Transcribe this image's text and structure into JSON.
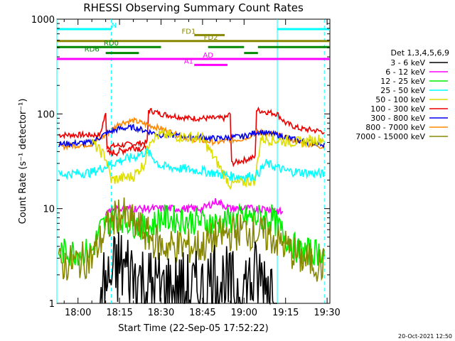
{
  "chart_data": {
    "type": "line",
    "title": "RHESSI Observing Summary Count Rates",
    "xlabel": "Start Time (22-Sep-05 17:52:22)",
    "ylabel": "Count Rate (s⁻¹ detector⁻¹)",
    "yscale": "log",
    "ylim": [
      1,
      1000
    ],
    "xlim": [
      "17:52:22",
      "19:31:00"
    ],
    "x_ticks": [
      "18:00",
      "18:15",
      "18:30",
      "18:45",
      "19:00",
      "19:15",
      "19:30"
    ],
    "y_ticks": [
      "1",
      "10",
      "100",
      "1000"
    ],
    "timestamp": "20-Oct-2021 12:50",
    "legend": {
      "title": "Det 1,3,4,5,6,9",
      "placement": "right",
      "entries": [
        {
          "label": "3 - 6 keV",
          "color": "#000000"
        },
        {
          "label": "6 - 12 keV",
          "color": "#ff00ff"
        },
        {
          "label": "12 - 25 keV",
          "color": "#00ee00"
        },
        {
          "label": "25 - 50 keV",
          "color": "#00ffff"
        },
        {
          "label": "50 - 100 keV",
          "color": "#dddd00"
        },
        {
          "label": "100 - 300 keV",
          "color": "#ee0000"
        },
        {
          "label": "300 - 800 keV",
          "color": "#0000ee"
        },
        {
          "label": "800 - 7000 keV",
          "color": "#ff8800"
        },
        {
          "label": "7000 - 15000 keV",
          "color": "#888800"
        }
      ]
    },
    "flags": [
      {
        "label": "N",
        "color": "#00ffff",
        "level": 0,
        "label_at": "18:13",
        "segments": [
          [
            "17:52:22",
            "18:12"
          ],
          [
            "19:12",
            "19:31"
          ]
        ]
      },
      {
        "label": "FD1",
        "color": "#888800",
        "level": 1,
        "label_at": "18:40",
        "segments": [
          [
            "18:42",
            "18:53"
          ]
        ]
      },
      {
        "label": "FD2",
        "color": "#888800",
        "level": 2,
        "label_at": "18:48",
        "segments": [
          [
            "17:52:22",
            "19:31"
          ]
        ]
      },
      {
        "label": "RD0",
        "color": "#008800",
        "level": 3,
        "label_at": "18:12",
        "segments": [
          [
            "17:52:22",
            "18:30"
          ],
          [
            "18:47",
            "19:00"
          ],
          [
            "19:05",
            "19:31"
          ]
        ]
      },
      {
        "label": "RD6",
        "color": "#008800",
        "level": 4,
        "label_at": "18:05",
        "segments": [
          [
            "18:10",
            "18:22"
          ],
          [
            "19:00",
            "19:05"
          ]
        ]
      },
      {
        "label": "AD",
        "color": "#ff00ff",
        "level": 5,
        "label_at": "18:47",
        "segments": [
          [
            "17:52:22",
            "19:31"
          ]
        ]
      },
      {
        "label": "A1",
        "color": "#ff00ff",
        "level": 6,
        "label_at": "18:40",
        "segments": [
          [
            "18:42",
            "18:54"
          ]
        ]
      }
    ],
    "night_bounds": [
      {
        "time": "17:52:22",
        "style": "solid"
      },
      {
        "time": "18:12",
        "style": "dashed"
      },
      {
        "time": "19:12",
        "style": "solid"
      },
      {
        "time": "19:29",
        "style": "dashed"
      }
    ],
    "series": [
      {
        "name": "100 - 300 keV",
        "color": "#ee0000",
        "noise": 0.03,
        "points": [
          [
            "17:53",
            60
          ],
          [
            "18:08",
            60
          ],
          [
            "18:09",
            80
          ],
          [
            "18:10",
            100
          ],
          [
            "18:10:30",
            45
          ],
          [
            "18:25",
            50
          ],
          [
            "18:25:30",
            110
          ],
          [
            "18:30",
            100
          ],
          [
            "18:40",
            90
          ],
          [
            "18:53",
            90
          ],
          [
            "18:55",
            100
          ],
          [
            "18:55:30",
            30
          ],
          [
            "19:04",
            35
          ],
          [
            "19:04:30",
            110
          ],
          [
            "19:12",
            100
          ],
          [
            "19:15",
            80
          ],
          [
            "19:20",
            70
          ],
          [
            "19:29",
            65
          ]
        ]
      },
      {
        "name": "100 - 300 keV lower branch",
        "color": "#ee0000",
        "noise": 0.04,
        "points": [
          [
            "18:10:30",
            38
          ],
          [
            "18:15",
            40
          ],
          [
            "18:20",
            45
          ],
          [
            "18:25",
            42
          ]
        ]
      },
      {
        "name": "800 - 7000 keV",
        "color": "#ff8800",
        "noise": 0.03,
        "points": [
          [
            "17:53",
            45
          ],
          [
            "18:05",
            48
          ],
          [
            "18:10",
            60
          ],
          [
            "18:15",
            80
          ],
          [
            "18:20",
            85
          ],
          [
            "18:30",
            70
          ],
          [
            "18:40",
            55
          ],
          [
            "18:50",
            50
          ],
          [
            "19:00",
            55
          ],
          [
            "19:05",
            65
          ],
          [
            "19:12",
            60
          ],
          [
            "19:20",
            50
          ],
          [
            "19:29",
            45
          ]
        ]
      },
      {
        "name": "300 - 800 keV",
        "color": "#0000ee",
        "noise": 0.03,
        "points": [
          [
            "17:53",
            48
          ],
          [
            "18:05",
            50
          ],
          [
            "18:10",
            62
          ],
          [
            "18:15",
            70
          ],
          [
            "18:20",
            72
          ],
          [
            "18:30",
            60
          ],
          [
            "18:40",
            58
          ],
          [
            "18:50",
            55
          ],
          [
            "19:00",
            58
          ],
          [
            "19:05",
            65
          ],
          [
            "19:12",
            60
          ],
          [
            "19:20",
            52
          ],
          [
            "19:29",
            48
          ]
        ]
      },
      {
        "name": "50 - 100 keV",
        "color": "#dddd00",
        "noise": 0.06,
        "points": [
          [
            "18:05",
            50
          ],
          [
            "18:10",
            35
          ],
          [
            "18:12",
            20
          ],
          [
            "18:20",
            22
          ],
          [
            "18:24",
            30
          ],
          [
            "18:26",
            55
          ],
          [
            "18:30",
            60
          ],
          [
            "18:45",
            55
          ],
          [
            "18:55",
            18
          ],
          [
            "19:04",
            20
          ],
          [
            "19:06",
            55
          ],
          [
            "19:20",
            50
          ],
          [
            "19:29",
            55
          ]
        ]
      },
      {
        "name": "25 - 50 keV",
        "color": "#00ffff",
        "noise": 0.05,
        "points": [
          [
            "17:53",
            23
          ],
          [
            "18:05",
            24
          ],
          [
            "18:10",
            28
          ],
          [
            "18:15",
            32
          ],
          [
            "18:20",
            35
          ],
          [
            "18:25",
            40
          ],
          [
            "18:30",
            28
          ],
          [
            "18:45",
            25
          ],
          [
            "18:55",
            22
          ],
          [
            "19:04",
            22
          ],
          [
            "19:08",
            30
          ],
          [
            "19:15",
            25
          ],
          [
            "19:29",
            23
          ]
        ]
      },
      {
        "name": "6 - 12 keV",
        "color": "#ff00ff",
        "noise": 0.04,
        "points": [
          [
            "18:10",
            9
          ],
          [
            "18:12",
            10
          ],
          [
            "18:20",
            10
          ],
          [
            "18:30",
            10
          ],
          [
            "18:45",
            10
          ],
          [
            "18:50",
            12
          ],
          [
            "18:55",
            10
          ],
          [
            "19:05",
            10
          ],
          [
            "19:10",
            10
          ],
          [
            "19:14",
            9
          ]
        ]
      },
      {
        "name": "12 - 25 keV",
        "color": "#00ee00",
        "noise": 0.15,
        "points": [
          [
            "17:53",
            3.5
          ],
          [
            "18:05",
            3.5
          ],
          [
            "18:08",
            6
          ],
          [
            "18:12",
            8
          ],
          [
            "18:15",
            8
          ],
          [
            "18:20",
            7
          ],
          [
            "18:25",
            6
          ],
          [
            "18:30",
            8
          ],
          [
            "18:50",
            7
          ],
          [
            "19:00",
            8
          ],
          [
            "19:10",
            8
          ],
          [
            "19:15",
            5
          ],
          [
            "19:20",
            3.5
          ],
          [
            "19:29",
            3.5
          ]
        ]
      },
      {
        "name": "7000 - 15000 keV",
        "color": "#888800",
        "noise": 0.2,
        "points": [
          [
            "17:53",
            2.5
          ],
          [
            "18:05",
            3
          ],
          [
            "18:10",
            6
          ],
          [
            "18:15",
            9
          ],
          [
            "18:20",
            7
          ],
          [
            "18:30",
            4
          ],
          [
            "18:45",
            4
          ],
          [
            "18:50",
            5
          ],
          [
            "19:00",
            6
          ],
          [
            "19:10",
            5
          ],
          [
            "19:15",
            4
          ],
          [
            "19:20",
            3
          ],
          [
            "19:29",
            2.5
          ]
        ]
      },
      {
        "name": "3 - 6 keV",
        "color": "#000000",
        "noise": 0.45,
        "points": [
          [
            "18:08",
            1.2
          ],
          [
            "18:15",
            2.5
          ],
          [
            "18:20",
            2
          ],
          [
            "18:25",
            1.5
          ],
          [
            "18:35",
            1.3
          ],
          [
            "18:45",
            1.3
          ],
          [
            "18:50",
            2
          ],
          [
            "18:55",
            1.3
          ],
          [
            "19:00",
            1.5
          ],
          [
            "19:05",
            1.8
          ],
          [
            "19:12",
            1.5
          ]
        ]
      }
    ]
  }
}
